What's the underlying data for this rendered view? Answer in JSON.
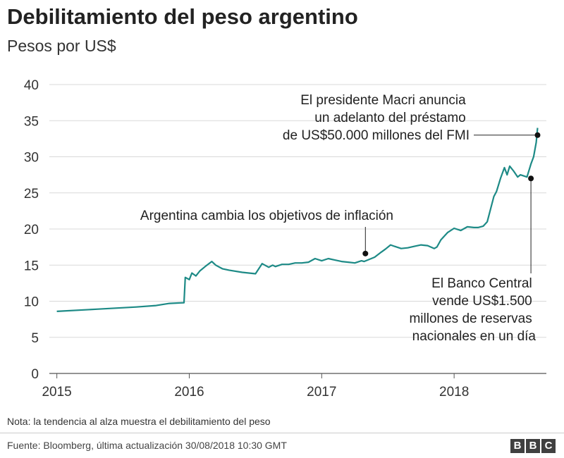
{
  "header": {
    "title": "Debilitamiento del peso argentino",
    "subtitle": "Pesos por US$"
  },
  "footer": {
    "note": "Nota: la tendencia al alza muestra el debilitamiento del peso",
    "source": "Fuente: Bloomberg, última actualización 30/08/2018 10:30 GMT",
    "logo_letters": [
      "B",
      "B",
      "C"
    ]
  },
  "chart_data": {
    "type": "line",
    "title": "Debilitamiento del peso argentino",
    "ylabel": "Pesos por US$",
    "xlabel": "",
    "x_ticks": [
      "2015",
      "2016",
      "2017",
      "2018"
    ],
    "x_tick_values": [
      2015,
      2016,
      2017,
      2018
    ],
    "xlim": [
      2014.97,
      2018.67
    ],
    "y_ticks": [
      0,
      5,
      10,
      15,
      20,
      25,
      30,
      35,
      40
    ],
    "ylim": [
      0,
      40
    ],
    "grid": true,
    "line_color": "#1d8a86",
    "series": [
      {
        "x": [
          2015.0,
          2015.3,
          2015.6,
          2015.75,
          2015.85,
          2015.96,
          2015.97,
          2016.0,
          2016.02,
          2016.05,
          2016.08,
          2016.12,
          2016.17,
          2016.2,
          2016.25,
          2016.3,
          2016.4,
          2016.5,
          2016.55,
          2016.6,
          2016.63,
          2016.65,
          2016.7,
          2016.75,
          2016.8,
          2016.85,
          2016.9,
          2016.95,
          2017.0,
          2017.05,
          2017.1,
          2017.15,
          2017.2,
          2017.25,
          2017.3,
          2017.32,
          2017.4,
          2017.45,
          2017.48,
          2017.52,
          2017.55,
          2017.6,
          2017.65,
          2017.7,
          2017.75,
          2017.8,
          2017.85,
          2017.87,
          2017.9,
          2017.95,
          2018.0,
          2018.05,
          2018.1,
          2018.15,
          2018.18,
          2018.22,
          2018.25,
          2018.3,
          2018.32,
          2018.35,
          2018.38,
          2018.4,
          2018.42,
          2018.45,
          2018.48,
          2018.5,
          2018.55,
          2018.58,
          2018.6,
          2018.62,
          2018.63
        ],
        "values": [
          8.6,
          8.9,
          9.2,
          9.4,
          9.7,
          9.8,
          13.3,
          13.0,
          13.9,
          13.5,
          14.2,
          14.8,
          15.5,
          15.0,
          14.5,
          14.3,
          14.0,
          13.8,
          15.2,
          14.7,
          15.0,
          14.8,
          15.1,
          15.1,
          15.3,
          15.3,
          15.4,
          15.9,
          15.6,
          15.9,
          15.7,
          15.5,
          15.4,
          15.3,
          15.6,
          15.5,
          16.1,
          16.8,
          17.2,
          17.8,
          17.6,
          17.3,
          17.4,
          17.6,
          17.8,
          17.7,
          17.3,
          17.5,
          18.5,
          19.5,
          20.1,
          19.8,
          20.3,
          20.2,
          20.2,
          20.4,
          21.0,
          24.5,
          25.2,
          27.0,
          28.5,
          27.5,
          28.7,
          28.0,
          27.2,
          27.5,
          27.2,
          29.0,
          30.0,
          32.0,
          34.0
        ]
      }
    ],
    "annotations": [
      {
        "lines": [
          "Argentina cambia los objetivos de inflación"
        ],
        "x": 2017.33,
        "y": 16.6
      },
      {
        "lines": [
          "El presidente Macri anuncia",
          "un adelanto del préstamo",
          "de US$50.000 millones del FMI"
        ],
        "x": 2018.63,
        "y": 33.0
      },
      {
        "lines": [
          "El Banco Central",
          "vende US$1.500",
          "millones de reservas",
          "nacionales en un día"
        ],
        "x": 2018.58,
        "y": 27.0
      }
    ]
  }
}
